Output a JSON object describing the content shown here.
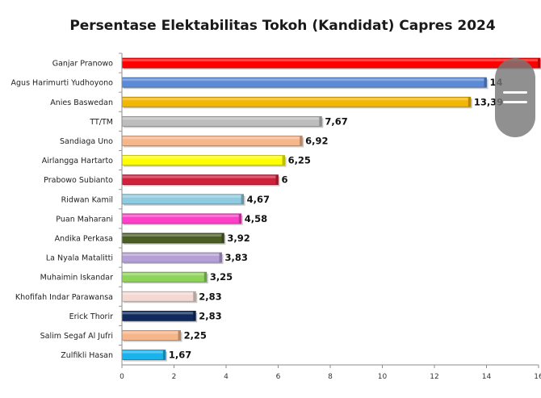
{
  "chart_data": {
    "type": "bar",
    "orientation": "horizontal",
    "title": "Persentase Elektabilitas Tokoh (Kandidat) Capres 2024",
    "categories": [
      "Ganjar Pranowo",
      "Agus Harimurti Yudhoyono",
      "Anies Baswedan",
      "TT/TM",
      "Sandiaga Uno",
      "Airlangga Hartarto",
      "Prabowo Subianto",
      "Ridwan Kamil",
      "Puan Maharani",
      "Andika Perkasa",
      "La Nyala Matalitti",
      "Muhaimin Iskandar",
      "Khofifah Indar Parawansa",
      "Erick Thorir",
      "Salim Segaf Al Jufri",
      "Zulfikli Hasan"
    ],
    "values": [
      16.2,
      14,
      13.39,
      7.67,
      6.92,
      6.25,
      6,
      4.67,
      4.58,
      3.92,
      3.83,
      3.25,
      2.83,
      2.83,
      2.25,
      1.67
    ],
    "value_labels": [
      "",
      "14",
      "13,39",
      "7,67",
      "6,92",
      "6,25",
      "6",
      "4,67",
      "4,58",
      "3,92",
      "3,83",
      "3,25",
      "2,83",
      "2,83",
      "2,25",
      "1,67"
    ],
    "colors": [
      "#ff0000",
      "#5b8ad6",
      "#f2b705",
      "#bdbdbd",
      "#f7b58a",
      "#ffff00",
      "#d0213c",
      "#8ecbe0",
      "#ff3fc8",
      "#4a5e23",
      "#b49fd6",
      "#8fd45a",
      "#f4d9d3",
      "#102a5e",
      "#f7b58a",
      "#19b2ec"
    ],
    "xlim": [
      0,
      16
    ],
    "xticks": [
      "0",
      "2",
      "4",
      "6",
      "8",
      "10",
      "12",
      "14",
      "16"
    ],
    "grid": false,
    "legend": "none"
  },
  "overlay": {
    "icon": "menu-lines-icon"
  }
}
